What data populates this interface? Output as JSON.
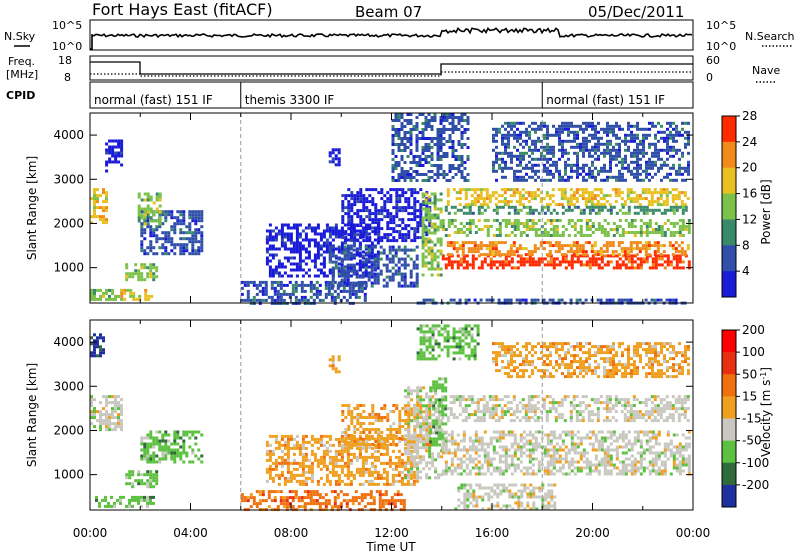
{
  "header": {
    "station": "Fort Hays East (fitACF)",
    "beam": "Beam 07",
    "date": "05/Dec/2011"
  },
  "sky_panel": {
    "left_label": "N.Sky",
    "right_label": "N.Search",
    "left_ticks": [
      "10^5",
      "10^0"
    ],
    "right_ticks": [
      "10^5",
      "10^0"
    ]
  },
  "freq_panel": {
    "left_label_1": "Freq.",
    "left_label_2": "[MHz]",
    "left_ticks": [
      "18",
      "8"
    ],
    "right_label": "Nave",
    "right_ticks": [
      "60",
      "0"
    ]
  },
  "cpid_panel": {
    "label": "CPID",
    "modes": [
      {
        "name": "normal (fast) 151 IF",
        "start_hour": 0,
        "end_hour": 6
      },
      {
        "name": "themis 3300 IF",
        "start_hour": 6,
        "end_hour": 18
      },
      {
        "name": "normal (fast) 151 IF",
        "start_hour": 18,
        "end_hour": 24
      }
    ]
  },
  "chart_data": [
    {
      "type": "heatmap",
      "name": "power",
      "ylabel": "Slant Range [km]",
      "ylim": [
        200,
        4500
      ],
      "yticks": [
        "1000",
        "2000",
        "3000",
        "4000"
      ],
      "colorbar_label": "Power [dB]",
      "colorbar_ticks": [
        "4",
        "8",
        "12",
        "16",
        "20",
        "24",
        "28"
      ],
      "colors": [
        "#1a1ad9",
        "#2f4fa8",
        "#3a8a6a",
        "#7cc24a",
        "#e8c020",
        "#f08a1a",
        "#ff2a00"
      ],
      "regions": [
        {
          "t0": 0.0,
          "t1": 1.2,
          "r0": 300,
          "r1": 520,
          "level": 3
        },
        {
          "t0": 1.2,
          "t1": 2.5,
          "r0": 300,
          "r1": 520,
          "level": 4
        },
        {
          "t0": 0.0,
          "t1": 0.7,
          "r0": 2000,
          "r1": 2800,
          "level": 4
        },
        {
          "t0": 1.4,
          "t1": 2.6,
          "r0": 700,
          "r1": 1100,
          "level": 3
        },
        {
          "t0": 2.0,
          "t1": 4.5,
          "r0": 1300,
          "r1": 2300,
          "level": 1
        },
        {
          "t0": 1.9,
          "t1": 2.8,
          "r0": 2000,
          "r1": 2700,
          "level": 3
        },
        {
          "t0": 0.6,
          "t1": 1.3,
          "r0": 3200,
          "r1": 3900,
          "level": 0
        },
        {
          "t0": 6.0,
          "t1": 11.0,
          "r0": 200,
          "r1": 700,
          "level": 1
        },
        {
          "t0": 7.0,
          "t1": 11.5,
          "r0": 800,
          "r1": 2000,
          "level": 0
        },
        {
          "t0": 9.5,
          "t1": 13.0,
          "r0": 600,
          "r1": 1500,
          "level": 1
        },
        {
          "t0": 10.0,
          "t1": 13.5,
          "r0": 1600,
          "r1": 2800,
          "level": 0
        },
        {
          "t0": 9.5,
          "t1": 9.9,
          "r0": 3300,
          "r1": 3700,
          "level": 0
        },
        {
          "t0": 12.0,
          "t1": 15.0,
          "r0": 3000,
          "r1": 4500,
          "level": 1
        },
        {
          "t0": 14.0,
          "t1": 23.8,
          "r0": 1700,
          "r1": 2100,
          "level": 3
        },
        {
          "t0": 14.2,
          "t1": 23.8,
          "r0": 2400,
          "r1": 2800,
          "level": 4
        },
        {
          "t0": 14.0,
          "t1": 23.8,
          "r0": 2200,
          "r1": 2400,
          "level": 2
        },
        {
          "t0": 14.0,
          "t1": 23.8,
          "r0": 1000,
          "r1": 1300,
          "level": 6
        },
        {
          "t0": 14.2,
          "t1": 23.8,
          "r0": 1300,
          "r1": 1600,
          "level": 5
        },
        {
          "t0": 13.2,
          "t1": 14.0,
          "r0": 800,
          "r1": 2700,
          "level": 3
        },
        {
          "t0": 16.0,
          "t1": 23.8,
          "r0": 3000,
          "r1": 4300,
          "level": 1
        },
        {
          "t0": 13.0,
          "t1": 23.8,
          "r0": 200,
          "r1": 300,
          "level": 1
        }
      ]
    },
    {
      "type": "heatmap",
      "name": "velocity",
      "ylabel": "Slant Range [km]",
      "ylim": [
        200,
        4500
      ],
      "yticks": [
        "1000",
        "2000",
        "3000",
        "4000"
      ],
      "colorbar_label": "Velocity [m s^-1]",
      "colorbar_ticks": [
        "200",
        "100",
        "50",
        "15",
        "-15",
        "-50",
        "-100",
        "-200"
      ],
      "colors": [
        "#1f2fa0",
        "#2f6a3a",
        "#5cc040",
        "#c8c8c0",
        "#f0a020",
        "#f07010",
        "#e83010",
        "#ff0000"
      ],
      "regions": [
        {
          "t0": 0.0,
          "t1": 1.2,
          "r0": 2000,
          "r1": 2800,
          "level": 3
        },
        {
          "t0": 2.0,
          "t1": 4.5,
          "r0": 1300,
          "r1": 2000,
          "level": 2
        },
        {
          "t0": 0.2,
          "t1": 2.5,
          "r0": 300,
          "r1": 520,
          "level": 2
        },
        {
          "t0": 1.4,
          "t1": 2.6,
          "r0": 700,
          "r1": 1100,
          "level": 2
        },
        {
          "t0": 0.0,
          "t1": 0.5,
          "r0": 3700,
          "r1": 4200,
          "level": 0
        },
        {
          "t0": 6.0,
          "t1": 12.5,
          "r0": 200,
          "r1": 650,
          "level": 5
        },
        {
          "t0": 7.0,
          "t1": 13.0,
          "r0": 800,
          "r1": 1900,
          "level": 4
        },
        {
          "t0": 10.0,
          "t1": 13.5,
          "r0": 1600,
          "r1": 2600,
          "level": 4
        },
        {
          "t0": 12.5,
          "t1": 14.0,
          "r0": 900,
          "r1": 3000,
          "level": 3
        },
        {
          "t0": 13.5,
          "t1": 14.2,
          "r0": 1600,
          "r1": 3200,
          "level": 2
        },
        {
          "t0": 14.0,
          "t1": 23.8,
          "r0": 1000,
          "r1": 2000,
          "level": 3
        },
        {
          "t0": 14.2,
          "t1": 23.8,
          "r0": 2200,
          "r1": 2800,
          "level": 3
        },
        {
          "t0": 14.5,
          "t1": 18.5,
          "r0": 200,
          "r1": 800,
          "level": 3
        },
        {
          "t0": 16.0,
          "t1": 23.8,
          "r0": 3200,
          "r1": 4000,
          "level": 4
        },
        {
          "t0": 9.5,
          "t1": 9.9,
          "r0": 3300,
          "r1": 3700,
          "level": 4
        },
        {
          "t0": 13.0,
          "t1": 15.5,
          "r0": 3600,
          "r1": 4400,
          "level": 2
        }
      ]
    }
  ],
  "x_axis": {
    "label": "Time UT",
    "tick_labels": [
      "00:00",
      "04:00",
      "08:00",
      "12:00",
      "16:00",
      "20:00",
      "00:00"
    ],
    "range_hours": [
      0,
      24
    ]
  }
}
